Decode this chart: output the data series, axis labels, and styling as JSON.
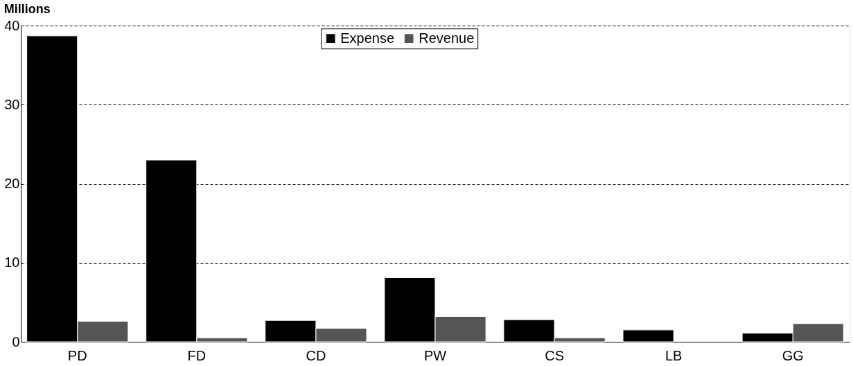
{
  "chart_data": {
    "type": "bar",
    "ylabel": "Millions",
    "categories": [
      "PD",
      "FD",
      "CD",
      "PW",
      "CS",
      "LB",
      "GG"
    ],
    "series": [
      {
        "name": "Expense",
        "color": "#000000",
        "values": [
          38.7,
          23.0,
          2.7,
          8.1,
          2.8,
          1.5,
          1.1
        ]
      },
      {
        "name": "Revenue",
        "color": "#555555",
        "values": [
          2.6,
          0.5,
          1.7,
          3.2,
          0.5,
          null,
          2.3
        ]
      }
    ],
    "ylim": [
      0,
      40
    ],
    "yticks": [
      0,
      10,
      20,
      30,
      40
    ],
    "grid": "y",
    "legend": "top"
  }
}
